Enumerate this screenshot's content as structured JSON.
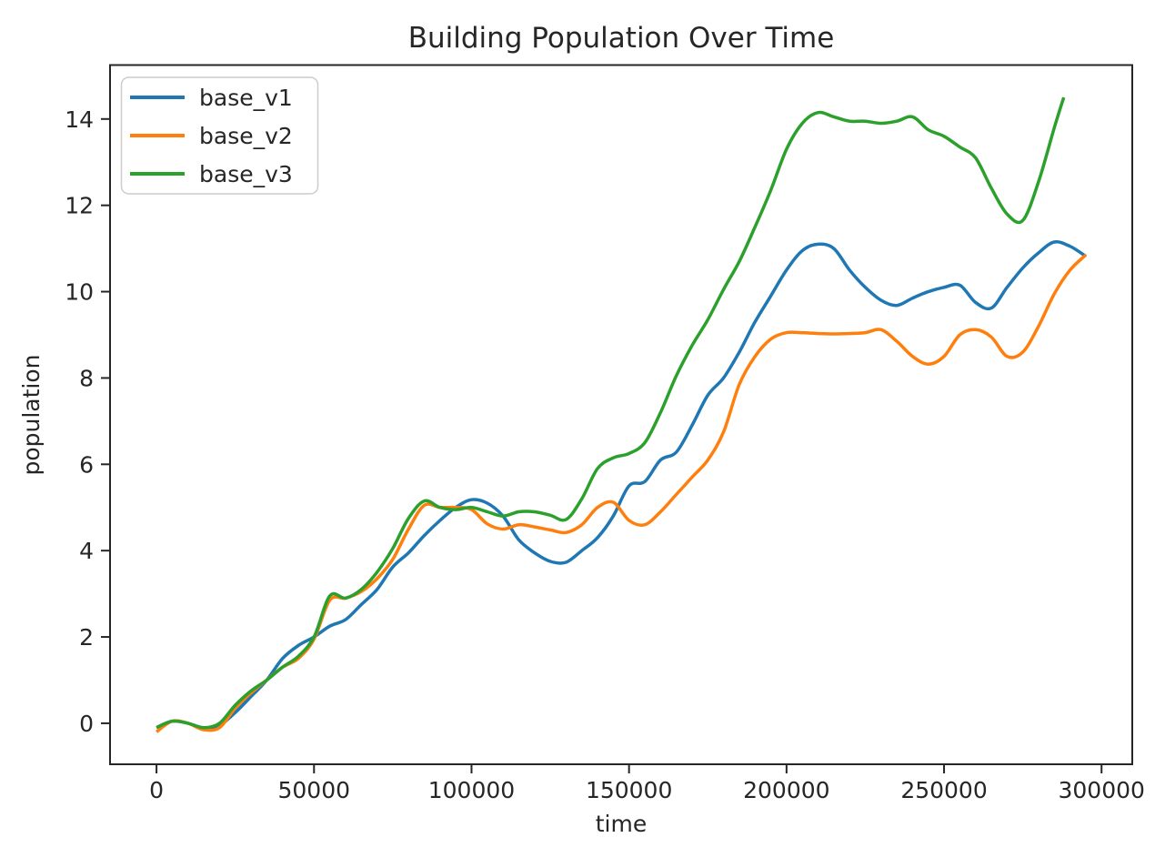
{
  "chart_data": {
    "type": "line",
    "title": "Building Population Over Time",
    "xlabel": "time",
    "ylabel": "population",
    "grid": false,
    "legend_position": "upper left",
    "xlim": [
      -14750,
      309750
    ],
    "ylim": [
      -0.95,
      15.25
    ],
    "x_ticks": [
      0,
      50000,
      100000,
      150000,
      200000,
      250000,
      300000
    ],
    "x_tick_labels": [
      "0",
      "50000",
      "100000",
      "150000",
      "200000",
      "250000",
      "300000"
    ],
    "y_ticks": [
      0,
      2,
      4,
      6,
      8,
      10,
      12,
      14
    ],
    "y_tick_labels": [
      "0",
      "2",
      "4",
      "6",
      "8",
      "10",
      "12",
      "14"
    ],
    "series": [
      {
        "name": "base_v1",
        "color": "#1f77b4",
        "x": [
          0,
          5000,
          10000,
          15000,
          20000,
          25000,
          30000,
          35000,
          40000,
          45000,
          50000,
          55000,
          60000,
          65000,
          70000,
          75000,
          80000,
          85000,
          90000,
          95000,
          100000,
          105000,
          110000,
          115000,
          120000,
          125000,
          130000,
          135000,
          140000,
          145000,
          150000,
          155000,
          160000,
          165000,
          170000,
          175000,
          180000,
          185000,
          190000,
          195000,
          200000,
          205000,
          210000,
          215000,
          220000,
          225000,
          230000,
          235000,
          240000,
          245000,
          250000,
          255000,
          260000,
          265000,
          270000,
          275000,
          280000,
          285000,
          290000,
          295000
        ],
        "values": [
          -0.1,
          0.05,
          0,
          -0.12,
          -0.05,
          0.25,
          0.62,
          1.0,
          1.5,
          1.8,
          2.0,
          2.25,
          2.4,
          2.75,
          3.1,
          3.62,
          3.95,
          4.35,
          4.7,
          5.0,
          5.18,
          5.1,
          4.8,
          4.25,
          3.95,
          3.75,
          3.73,
          4.0,
          4.3,
          4.8,
          5.5,
          5.6,
          6.1,
          6.28,
          6.9,
          7.6,
          8.0,
          8.6,
          9.3,
          9.9,
          10.5,
          10.95,
          11.1,
          11.0,
          10.5,
          10.1,
          9.8,
          9.68,
          9.85,
          10.0,
          10.1,
          10.15,
          9.75,
          9.62,
          10.1,
          10.55,
          10.9,
          11.15,
          11.05,
          10.82
        ]
      },
      {
        "name": "base_v2",
        "color": "#ff7f0e",
        "x": [
          0,
          5000,
          10000,
          15000,
          20000,
          25000,
          30000,
          35000,
          40000,
          45000,
          50000,
          55000,
          60000,
          65000,
          70000,
          75000,
          80000,
          85000,
          90000,
          95000,
          100000,
          105000,
          110000,
          115000,
          120000,
          125000,
          130000,
          135000,
          140000,
          145000,
          150000,
          155000,
          160000,
          165000,
          170000,
          175000,
          180000,
          185000,
          190000,
          195000,
          200000,
          205000,
          210000,
          215000,
          220000,
          225000,
          230000,
          235000,
          240000,
          245000,
          250000,
          255000,
          260000,
          265000,
          270000,
          275000,
          280000,
          285000,
          290000,
          295000
        ],
        "values": [
          -0.2,
          0.05,
          0,
          -0.15,
          -0.1,
          0.35,
          0.7,
          1.0,
          1.3,
          1.5,
          1.95,
          2.85,
          2.9,
          3.05,
          3.35,
          3.8,
          4.5,
          5.05,
          5.0,
          5.0,
          4.95,
          4.62,
          4.5,
          4.6,
          4.55,
          4.48,
          4.42,
          4.6,
          5.0,
          5.12,
          4.7,
          4.6,
          4.9,
          5.3,
          5.7,
          6.1,
          6.75,
          7.85,
          8.5,
          8.9,
          9.05,
          9.05,
          9.03,
          9.02,
          9.03,
          9.05,
          9.12,
          8.85,
          8.5,
          8.32,
          8.5,
          9.0,
          9.12,
          8.95,
          8.5,
          8.6,
          9.2,
          9.95,
          10.5,
          10.85
        ]
      },
      {
        "name": "base_v3",
        "color": "#2ca02c",
        "x": [
          0,
          5000,
          10000,
          15000,
          20000,
          25000,
          30000,
          35000,
          40000,
          45000,
          50000,
          55000,
          60000,
          65000,
          70000,
          75000,
          80000,
          85000,
          90000,
          95000,
          100000,
          105000,
          110000,
          115000,
          120000,
          125000,
          130000,
          135000,
          140000,
          145000,
          150000,
          155000,
          160000,
          165000,
          170000,
          175000,
          180000,
          185000,
          190000,
          195000,
          200000,
          205000,
          210000,
          215000,
          220000,
          225000,
          230000,
          235000,
          240000,
          245000,
          250000,
          255000,
          260000,
          265000,
          270000,
          275000,
          280000,
          285000,
          288000
        ],
        "values": [
          -0.1,
          0.05,
          0,
          -0.1,
          0,
          0.42,
          0.75,
          1.0,
          1.3,
          1.55,
          2.0,
          2.95,
          2.9,
          3.1,
          3.5,
          4.05,
          4.75,
          5.15,
          5.0,
          4.95,
          5.0,
          4.9,
          4.8,
          4.9,
          4.9,
          4.82,
          4.72,
          5.2,
          5.9,
          6.15,
          6.25,
          6.5,
          7.2,
          8.05,
          8.75,
          9.35,
          10.05,
          10.7,
          11.5,
          12.35,
          13.3,
          13.9,
          14.15,
          14.05,
          13.95,
          13.95,
          13.9,
          13.95,
          14.05,
          13.75,
          13.6,
          13.35,
          13.1,
          12.4,
          11.8,
          11.65,
          12.55,
          13.8,
          14.5
        ]
      }
    ]
  }
}
